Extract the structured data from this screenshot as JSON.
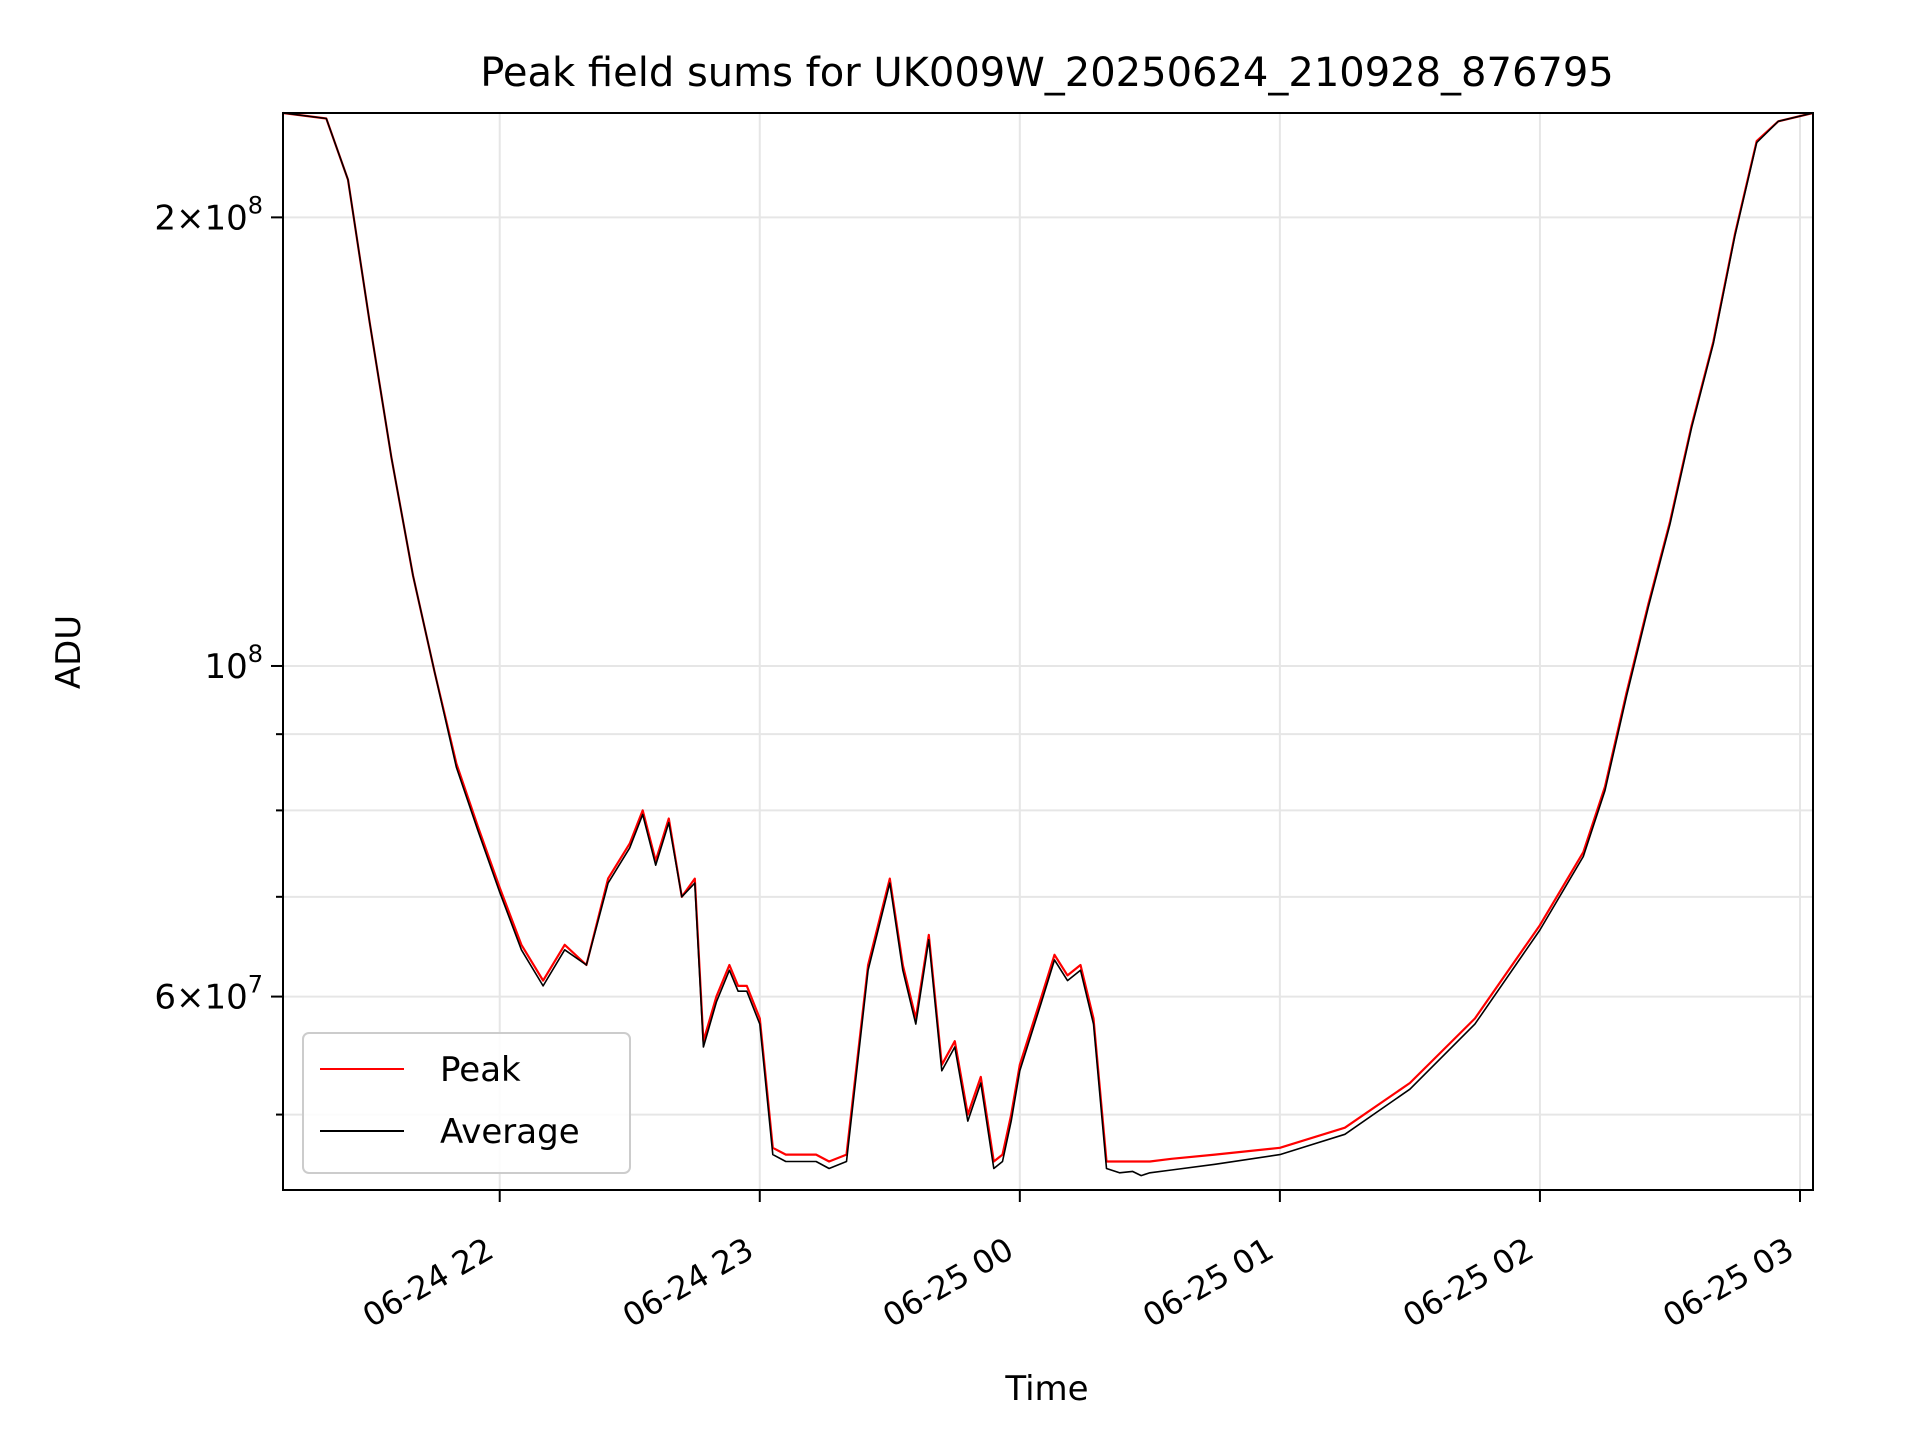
{
  "chart_data": {
    "type": "line",
    "title": "Peak field sums for UK009W_20250624_210928_876795",
    "xlabel": "Time",
    "ylabel": "ADU",
    "y_scale": "log",
    "grid": true,
    "legend_position": "lower-left",
    "xlim": [
      "2025-06-24 21:10",
      "2025-06-25 03:03"
    ],
    "ylim": [
      44500000,
      235000000
    ],
    "x_ticks": [
      {
        "value": "2025-06-24 22:00",
        "label": "06-24 22"
      },
      {
        "value": "2025-06-24 23:00",
        "label": "06-24 23"
      },
      {
        "value": "2025-06-25 00:00",
        "label": "06-25 00"
      },
      {
        "value": "2025-06-25 01:00",
        "label": "06-25 01"
      },
      {
        "value": "2025-06-25 02:00",
        "label": "06-25 02"
      },
      {
        "value": "2025-06-25 03:00",
        "label": "06-25 03"
      }
    ],
    "y_major_ticks": [
      {
        "value": 60000000,
        "base": "6",
        "exp": "7"
      },
      {
        "value": 100000000,
        "base": "",
        "exp": "8"
      },
      {
        "value": 200000000,
        "base": "2",
        "exp": "8"
      }
    ],
    "y_minor_ticks": [
      50000000,
      70000000,
      80000000,
      90000000
    ],
    "series": [
      {
        "name": "Peak",
        "color": "#ff0000",
        "x": [
          "2025-06-24 21:10",
          "2025-06-24 21:20",
          "2025-06-24 21:25",
          "2025-06-24 21:30",
          "2025-06-24 21:35",
          "2025-06-24 21:40",
          "2025-06-24 21:45",
          "2025-06-24 21:50",
          "2025-06-24 21:55",
          "2025-06-24 22:00",
          "2025-06-24 22:05",
          "2025-06-24 22:10",
          "2025-06-24 22:15",
          "2025-06-24 22:20",
          "2025-06-24 22:25",
          "2025-06-24 22:30",
          "2025-06-24 22:33",
          "2025-06-24 22:36",
          "2025-06-24 22:39",
          "2025-06-24 22:42",
          "2025-06-24 22:45",
          "2025-06-24 22:47",
          "2025-06-24 22:50",
          "2025-06-24 22:53",
          "2025-06-24 22:55",
          "2025-06-24 22:57",
          "2025-06-24 23:00",
          "2025-06-24 23:03",
          "2025-06-24 23:06",
          "2025-06-24 23:09",
          "2025-06-24 23:11",
          "2025-06-24 23:13",
          "2025-06-24 23:16",
          "2025-06-24 23:20",
          "2025-06-24 23:25",
          "2025-06-24 23:30",
          "2025-06-24 23:33",
          "2025-06-24 23:36",
          "2025-06-24 23:39",
          "2025-06-24 23:42",
          "2025-06-24 23:45",
          "2025-06-24 23:48",
          "2025-06-24 23:51",
          "2025-06-24 23:54",
          "2025-06-24 23:56",
          "2025-06-24 23:58",
          "2025-06-25 00:00",
          "2025-06-25 00:05",
          "2025-06-25 00:08",
          "2025-06-25 00:11",
          "2025-06-25 00:14",
          "2025-06-25 00:17",
          "2025-06-25 00:20",
          "2025-06-25 00:23",
          "2025-06-25 00:26",
          "2025-06-25 00:28",
          "2025-06-25 00:30",
          "2025-06-25 00:35",
          "2025-06-25 00:45",
          "2025-06-25 01:00",
          "2025-06-25 01:15",
          "2025-06-25 01:30",
          "2025-06-25 01:45",
          "2025-06-25 02:00",
          "2025-06-25 02:10",
          "2025-06-25 02:15",
          "2025-06-25 02:20",
          "2025-06-25 02:25",
          "2025-06-25 02:30",
          "2025-06-25 02:35",
          "2025-06-25 02:40",
          "2025-06-25 02:45",
          "2025-06-25 02:50",
          "2025-06-25 02:55",
          "2025-06-25 03:03"
        ],
        "values": [
          235000000,
          233000000,
          212000000,
          170000000,
          138000000,
          115000000,
          99000000,
          86000000,
          78000000,
          71000000,
          65000000,
          61500000,
          65000000,
          63000000,
          72000000,
          76000000,
          80000000,
          74000000,
          79000000,
          70000000,
          72000000,
          56000000,
          60000000,
          63000000,
          61000000,
          61000000,
          58000000,
          47500000,
          47000000,
          47000000,
          47000000,
          47000000,
          46500000,
          47000000,
          63000000,
          72000000,
          63000000,
          58000000,
          66000000,
          54000000,
          56000000,
          50000000,
          53000000,
          46500000,
          47000000,
          50000000,
          54000000,
          60000000,
          64000000,
          62000000,
          63000000,
          58000000,
          46500000,
          46500000,
          46500000,
          46500000,
          46500000,
          46700000,
          47000000,
          47500000,
          49000000,
          52500000,
          58000000,
          67000000,
          75000000,
          83000000,
          96000000,
          110000000,
          125000000,
          145000000,
          165000000,
          195000000,
          225000000,
          232000000,
          235000000
        ]
      },
      {
        "name": "Average",
        "color": "#000000",
        "x": [
          "2025-06-24 21:10",
          "2025-06-24 21:20",
          "2025-06-24 21:25",
          "2025-06-24 21:30",
          "2025-06-24 21:35",
          "2025-06-24 21:40",
          "2025-06-24 21:45",
          "2025-06-24 21:50",
          "2025-06-24 21:55",
          "2025-06-24 22:00",
          "2025-06-24 22:05",
          "2025-06-24 22:10",
          "2025-06-24 22:15",
          "2025-06-24 22:20",
          "2025-06-24 22:25",
          "2025-06-24 22:30",
          "2025-06-24 22:33",
          "2025-06-24 22:36",
          "2025-06-24 22:39",
          "2025-06-24 22:42",
          "2025-06-24 22:45",
          "2025-06-24 22:47",
          "2025-06-24 22:50",
          "2025-06-24 22:53",
          "2025-06-24 22:55",
          "2025-06-24 22:57",
          "2025-06-24 23:00",
          "2025-06-24 23:03",
          "2025-06-24 23:06",
          "2025-06-24 23:09",
          "2025-06-24 23:11",
          "2025-06-24 23:13",
          "2025-06-24 23:16",
          "2025-06-24 23:20",
          "2025-06-24 23:25",
          "2025-06-24 23:30",
          "2025-06-24 23:33",
          "2025-06-24 23:36",
          "2025-06-24 23:39",
          "2025-06-24 23:42",
          "2025-06-24 23:45",
          "2025-06-24 23:48",
          "2025-06-24 23:51",
          "2025-06-24 23:54",
          "2025-06-24 23:56",
          "2025-06-24 23:58",
          "2025-06-25 00:00",
          "2025-06-25 00:05",
          "2025-06-25 00:08",
          "2025-06-25 00:11",
          "2025-06-25 00:14",
          "2025-06-25 00:17",
          "2025-06-25 00:20",
          "2025-06-25 00:23",
          "2025-06-25 00:26",
          "2025-06-25 00:28",
          "2025-06-25 00:30",
          "2025-06-25 00:35",
          "2025-06-25 00:45",
          "2025-06-25 01:00",
          "2025-06-25 01:15",
          "2025-06-25 01:30",
          "2025-06-25 01:45",
          "2025-06-25 02:00",
          "2025-06-25 02:10",
          "2025-06-25 02:15",
          "2025-06-25 02:20",
          "2025-06-25 02:25",
          "2025-06-25 02:30",
          "2025-06-25 02:35",
          "2025-06-25 02:40",
          "2025-06-25 02:45",
          "2025-06-25 02:50",
          "2025-06-25 02:55",
          "2025-06-25 03:03"
        ],
        "values": [
          235000000,
          233000000,
          212000000,
          170000000,
          138000000,
          115000000,
          99000000,
          85500000,
          77500000,
          70500000,
          64500000,
          61000000,
          64500000,
          63000000,
          71500000,
          75500000,
          79500000,
          73500000,
          78500000,
          70000000,
          71500000,
          55500000,
          59500000,
          62500000,
          60500000,
          60500000,
          57500000,
          47000000,
          46500000,
          46500000,
          46500000,
          46500000,
          46000000,
          46500000,
          62500000,
          71500000,
          62500000,
          57500000,
          65500000,
          53500000,
          55500000,
          49500000,
          52500000,
          46000000,
          46500000,
          49500000,
          53500000,
          59500000,
          63500000,
          61500000,
          62500000,
          57500000,
          46000000,
          45700000,
          45800000,
          45500000,
          45700000,
          45900000,
          46300000,
          47000000,
          48500000,
          52000000,
          57500000,
          66500000,
          74500000,
          82500000,
          95500000,
          109500000,
          124500000,
          144500000,
          164500000,
          194500000,
          224500000,
          232000000,
          235000000
        ]
      }
    ]
  }
}
